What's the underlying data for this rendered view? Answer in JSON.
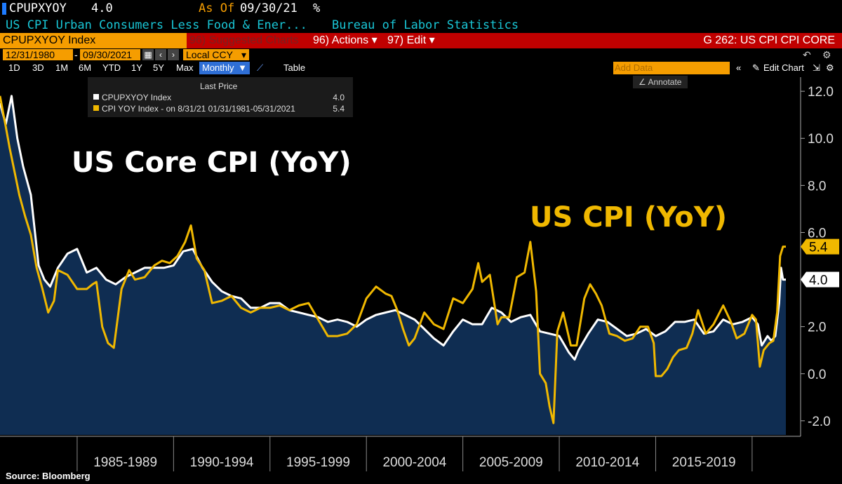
{
  "header": {
    "ticker": "CPUPXYOY",
    "value": "4.0",
    "as_of_label": "As Of",
    "as_of_date": "09/30/21",
    "unit": "%",
    "description": "US CPI Urban Consumers Less Food & Ener...",
    "source": "Bureau of Labor Statistics"
  },
  "toolbar": {
    "index_label": "CPUPXYOY Index",
    "suggested_label": "Suggested Charts",
    "suggested_code": "96)",
    "actions_code": "96)",
    "actions_label": "Actions",
    "edit_code": "97)",
    "edit_label": "Edit",
    "graph_id": "G 262: US CPI CPI CORE",
    "start_date": "12/31/1980",
    "end_date": "09/30/2021",
    "currency": "Local CCY",
    "periods": [
      "1D",
      "3D",
      "1M",
      "6M",
      "YTD",
      "1Y",
      "5Y",
      "Max"
    ],
    "frequency": "Monthly",
    "table_label": "Table",
    "add_data_placeholder": "Add Data",
    "edit_chart_label": "Edit Chart",
    "annotate_label": "Annotate"
  },
  "legend": {
    "header": "Last Price",
    "items": [
      {
        "label": "CPUPXYOY Index",
        "value": "4.0",
        "color": "#ffffff"
      },
      {
        "label": "CPI YOY Index - on 8/31/21 01/31/1981-05/31/2021",
        "value": "5.4",
        "color": "#f0b800"
      }
    ]
  },
  "footer": {
    "source": "Source: Bloomberg"
  },
  "chart_data": {
    "type": "line",
    "overlay_titles": [
      {
        "text": "US Core CPI (YoY)",
        "color": "#ffffff"
      },
      {
        "text": "US CPI (YoY)",
        "color": "#f0b800"
      }
    ],
    "xlim": [
      1981.0,
      2021.75
    ],
    "ylim": [
      -2.6,
      12.6
    ],
    "y_ticks": [
      -2.0,
      0.0,
      2.0,
      4.0,
      6.0,
      8.0,
      10.0,
      12.0
    ],
    "x_tick_labels": [
      "1985-1989",
      "1990-1994",
      "1995-1999",
      "2000-2004",
      "2005-2009",
      "2010-2014",
      "2015-2019"
    ],
    "grid": false,
    "last_value_labels": [
      {
        "value": "5.4",
        "color": "#f0b800"
      },
      {
        "value": "4.0",
        "color": "#ffffff"
      }
    ],
    "series": [
      {
        "name": "CPUPXYOY Index",
        "color": "#ffffff",
        "fill": "#0f2d52",
        "x": [
          1981.0,
          1981.3,
          1981.6,
          1981.9,
          1982.2,
          1982.6,
          1983.0,
          1983.3,
          1983.6,
          1984.0,
          1984.5,
          1985.0,
          1985.5,
          1986.0,
          1986.5,
          1987.0,
          1987.5,
          1988.0,
          1988.5,
          1989.0,
          1989.5,
          1990.0,
          1990.5,
          1991.0,
          1991.5,
          1992.0,
          1992.5,
          1993.0,
          1993.5,
          1994.0,
          1994.5,
          1995.0,
          1995.5,
          1996.0,
          1996.5,
          1997.0,
          1997.5,
          1998.0,
          1998.5,
          1999.0,
          1999.5,
          2000.0,
          2000.5,
          2001.0,
          2001.5,
          2002.0,
          2002.5,
          2003.0,
          2003.5,
          2004.0,
          2004.5,
          2005.0,
          2005.5,
          2006.0,
          2006.5,
          2007.0,
          2007.5,
          2008.0,
          2008.5,
          2009.0,
          2009.5,
          2010.0,
          2010.5,
          2010.8,
          2011.0,
          2011.5,
          2012.0,
          2012.5,
          2013.0,
          2013.5,
          2014.0,
          2014.5,
          2015.0,
          2015.5,
          2016.0,
          2016.5,
          2017.0,
          2017.5,
          2018.0,
          2018.5,
          2019.0,
          2019.5,
          2020.0,
          2020.3,
          2020.5,
          2020.8,
          2021.0,
          2021.2,
          2021.4,
          2021.5,
          2021.6,
          2021.75
        ],
        "values": [
          11.5,
          10.6,
          11.8,
          10.0,
          8.8,
          7.6,
          4.6,
          4.0,
          3.7,
          4.5,
          5.1,
          5.3,
          4.3,
          4.5,
          4.0,
          3.8,
          4.1,
          4.3,
          4.5,
          4.5,
          4.5,
          4.6,
          5.2,
          5.3,
          4.5,
          3.9,
          3.5,
          3.3,
          3.2,
          2.8,
          2.8,
          3.0,
          3.0,
          2.7,
          2.6,
          2.5,
          2.4,
          2.2,
          2.3,
          2.2,
          2.0,
          2.3,
          2.5,
          2.6,
          2.7,
          2.5,
          2.3,
          1.9,
          1.5,
          1.2,
          1.8,
          2.3,
          2.1,
          2.1,
          2.8,
          2.6,
          2.2,
          2.4,
          2.5,
          1.8,
          1.7,
          1.6,
          0.9,
          0.6,
          1.0,
          1.7,
          2.3,
          2.2,
          1.9,
          1.6,
          1.7,
          1.9,
          1.6,
          1.8,
          2.2,
          2.2,
          2.3,
          1.7,
          1.8,
          2.3,
          2.1,
          2.2,
          2.4,
          2.1,
          1.2,
          1.6,
          1.4,
          1.6,
          3.0,
          4.5,
          4.0,
          4.0
        ]
      },
      {
        "name": "CPI YOY Index",
        "color": "#f0b800",
        "x": [
          1981.0,
          1981.3,
          1981.5,
          1981.8,
          1982.0,
          1982.3,
          1982.6,
          1982.9,
          1983.2,
          1983.5,
          1983.8,
          1984.0,
          1984.5,
          1985.0,
          1985.5,
          1985.8,
          1986.0,
          1986.3,
          1986.6,
          1986.9,
          1987.3,
          1987.7,
          1988.0,
          1988.5,
          1989.0,
          1989.4,
          1989.8,
          1990.2,
          1990.6,
          1990.9,
          1991.2,
          1991.6,
          1992.0,
          1992.5,
          1993.0,
          1993.5,
          1994.0,
          1994.5,
          1995.0,
          1995.5,
          1996.0,
          1996.5,
          1997.0,
          1997.5,
          1998.0,
          1998.5,
          1999.0,
          1999.5,
          2000.0,
          2000.5,
          2001.0,
          2001.3,
          2001.6,
          2001.9,
          2002.2,
          2002.5,
          2003.0,
          2003.5,
          2004.0,
          2004.5,
          2005.0,
          2005.5,
          2005.8,
          2006.0,
          2006.4,
          2006.8,
          2007.0,
          2007.4,
          2007.8,
          2008.2,
          2008.5,
          2008.8,
          2009.0,
          2009.3,
          2009.5,
          2009.7,
          2009.9,
          2010.2,
          2010.6,
          2010.9,
          2011.3,
          2011.6,
          2011.9,
          2012.2,
          2012.6,
          2013.0,
          2013.4,
          2013.8,
          2014.2,
          2014.6,
          2014.9,
          2015.0,
          2015.3,
          2015.6,
          2015.9,
          2016.2,
          2016.6,
          2016.9,
          2017.2,
          2017.6,
          2018.0,
          2018.5,
          2018.9,
          2019.2,
          2019.6,
          2020.0,
          2020.2,
          2020.4,
          2020.6,
          2020.9,
          2021.1,
          2021.3,
          2021.45,
          2021.6,
          2021.75
        ],
        "values": [
          11.8,
          10.5,
          9.6,
          8.4,
          7.6,
          6.7,
          5.9,
          4.5,
          3.6,
          2.6,
          3.1,
          4.4,
          4.2,
          3.6,
          3.6,
          3.8,
          3.9,
          2.0,
          1.3,
          1.1,
          3.6,
          4.4,
          4.0,
          4.1,
          4.6,
          4.8,
          4.7,
          5.0,
          5.6,
          6.3,
          4.9,
          4.4,
          3.0,
          3.1,
          3.3,
          2.8,
          2.6,
          2.8,
          2.8,
          2.9,
          2.7,
          2.9,
          3.0,
          2.3,
          1.6,
          1.6,
          1.7,
          2.1,
          3.2,
          3.7,
          3.4,
          3.3,
          2.7,
          1.9,
          1.2,
          1.5,
          2.6,
          2.1,
          1.9,
          3.2,
          3.0,
          3.6,
          4.7,
          3.9,
          4.2,
          2.1,
          2.4,
          2.4,
          4.1,
          4.3,
          5.6,
          3.5,
          0.0,
          -0.4,
          -1.4,
          -2.1,
          1.8,
          2.6,
          1.2,
          1.2,
          3.2,
          3.8,
          3.4,
          2.9,
          1.7,
          1.6,
          1.4,
          1.5,
          2.0,
          2.0,
          1.3,
          -0.1,
          -0.1,
          0.2,
          0.7,
          1.0,
          1.1,
          1.7,
          2.7,
          1.7,
          2.1,
          2.9,
          2.2,
          1.5,
          1.7,
          2.5,
          2.3,
          0.3,
          1.0,
          1.3,
          1.4,
          2.6,
          5.0,
          5.4,
          5.4
        ]
      }
    ]
  }
}
